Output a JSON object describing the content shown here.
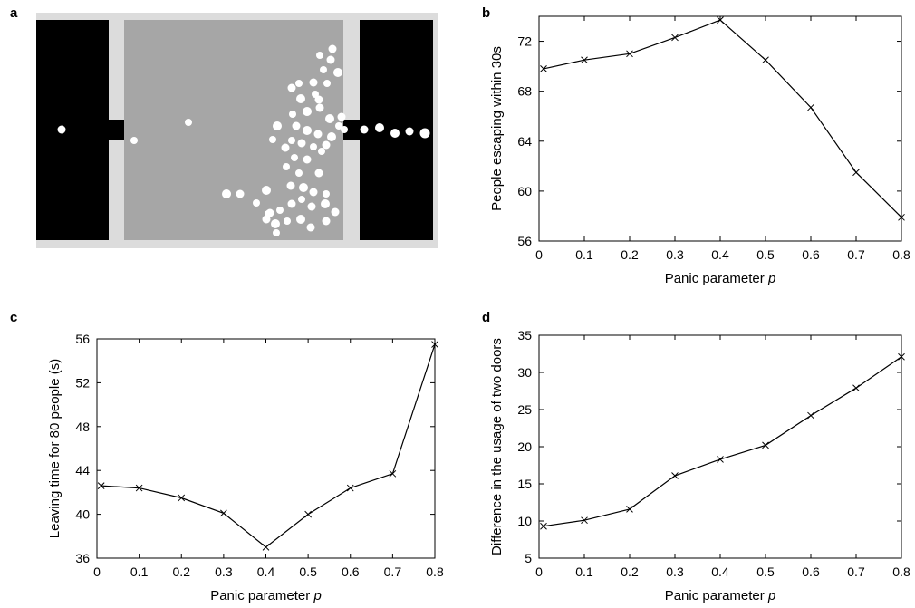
{
  "panels": {
    "a": {
      "letter": "a"
    },
    "b": {
      "letter": "b"
    },
    "c": {
      "letter": "c"
    },
    "d": {
      "letter": "d"
    }
  },
  "colors": {
    "wall": "#000000",
    "room": "#a6a6a6",
    "corridor": "#dcdcdc",
    "pedestrian": "#ffffff",
    "line": "#000000"
  },
  "icons": {
    "pedestrian": "pedestrian-dot-icon",
    "marker": "x-marker-icon"
  },
  "chart_data": [
    {
      "id": "b",
      "type": "line",
      "xlabel": "Panic parameter",
      "xlabel_var": "p",
      "ylabel": "People escaping within 30s",
      "xlim": [
        0,
        0.8
      ],
      "ylim": [
        56,
        74
      ],
      "x_ticks": [
        "0",
        "0.1",
        "0.2",
        "0.3",
        "0.4",
        "0.5",
        "0.6",
        "0.7",
        "0.8"
      ],
      "y_ticks": [
        "56",
        "60",
        "64",
        "68",
        "72"
      ],
      "x": [
        0.01,
        0.1,
        0.2,
        0.3,
        0.4,
        0.5,
        0.6,
        0.7,
        0.8
      ],
      "values": [
        69.8,
        70.5,
        71.0,
        72.3,
        73.7,
        70.5,
        66.7,
        61.5,
        57.9
      ]
    },
    {
      "id": "c",
      "type": "line",
      "xlabel": "Panic parameter",
      "xlabel_var": "p",
      "ylabel": "Leaving time for 80 people (s)",
      "xlim": [
        0,
        0.8
      ],
      "ylim": [
        36,
        56
      ],
      "x_ticks": [
        "0",
        "0.1",
        "0.2",
        "0.3",
        "0.4",
        "0.5",
        "0.6",
        "0.7",
        "0.8"
      ],
      "y_ticks": [
        "36",
        "40",
        "44",
        "48",
        "52",
        "56"
      ],
      "x": [
        0.01,
        0.1,
        0.2,
        0.3,
        0.4,
        0.5,
        0.6,
        0.7,
        0.8
      ],
      "values": [
        42.6,
        42.4,
        41.5,
        40.1,
        37.0,
        40.0,
        42.4,
        43.7,
        55.5
      ]
    },
    {
      "id": "d",
      "type": "line",
      "xlabel": "Panic parameter",
      "xlabel_var": "p",
      "ylabel": "Difference in the usage of two doors",
      "xlim": [
        0,
        0.8
      ],
      "ylim": [
        5,
        35
      ],
      "x_ticks": [
        "0",
        "0.1",
        "0.2",
        "0.3",
        "0.4",
        "0.5",
        "0.6",
        "0.7",
        "0.8"
      ],
      "y_ticks": [
        "5",
        "10",
        "15",
        "20",
        "25",
        "30",
        "35"
      ],
      "x": [
        0.01,
        0.1,
        0.2,
        0.3,
        0.4,
        0.5,
        0.6,
        0.7,
        0.8
      ],
      "values": [
        9.3,
        10.1,
        11.6,
        16.1,
        18.3,
        20.2,
        24.2,
        27.9,
        32.1
      ]
    }
  ]
}
